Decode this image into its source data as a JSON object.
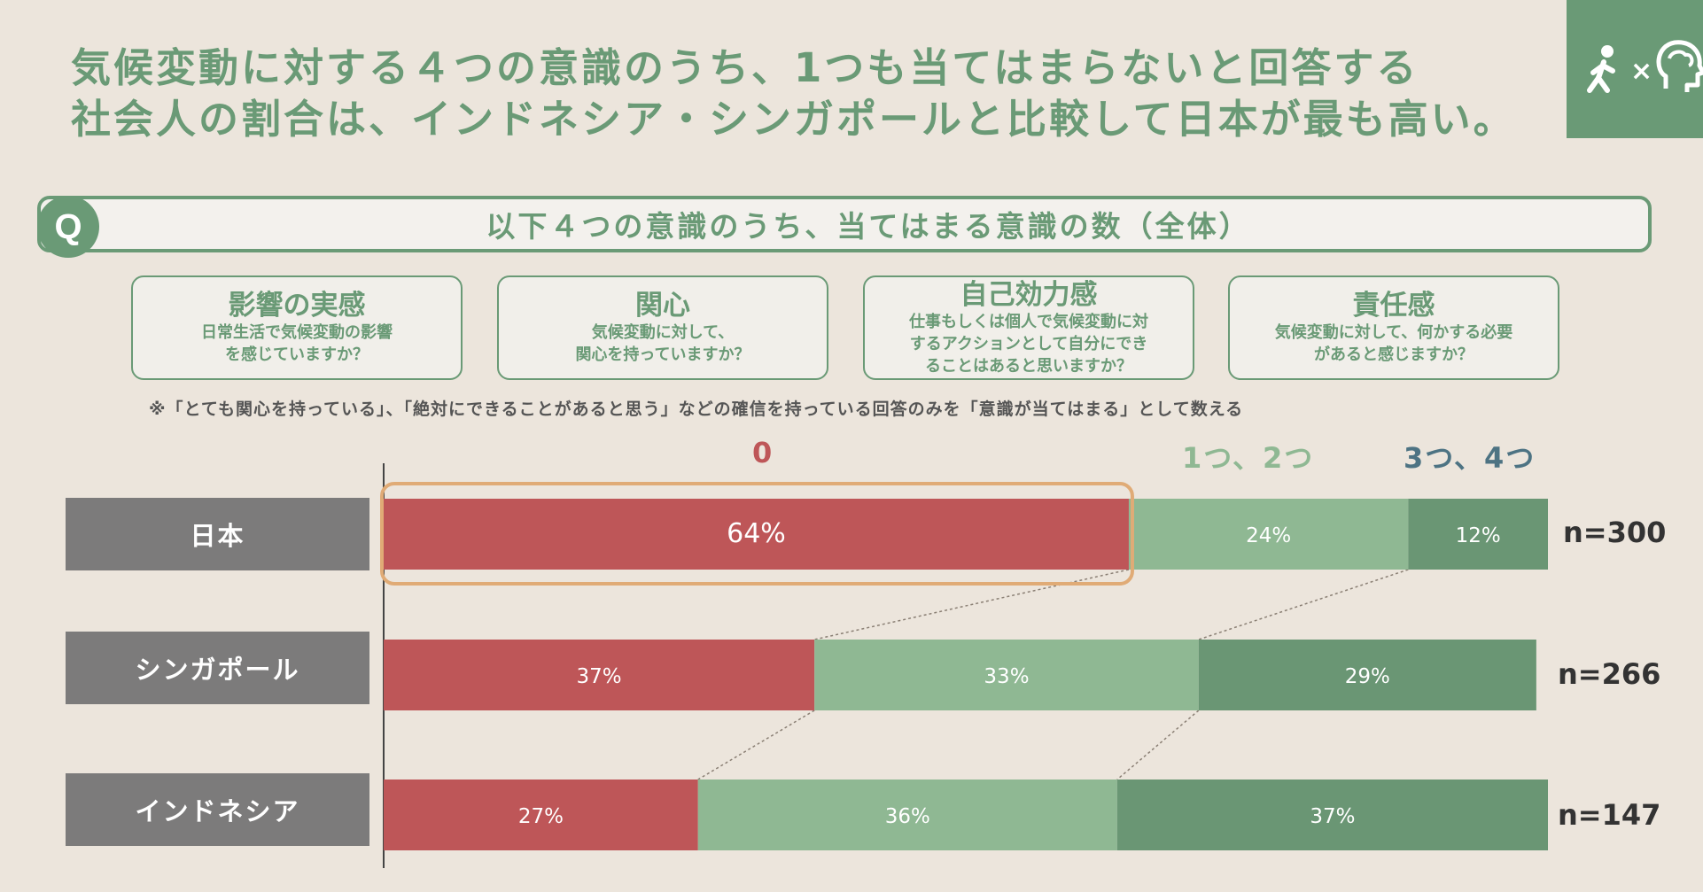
{
  "headline": {
    "line1": "気候変動に対する４つの意識のうち、1つも当てはまらないと回答する",
    "line2": "社会人の割合は、インドネシア・シンガポールと比較して日本が最も高い。"
  },
  "icons": {
    "walker": "walking-person-icon",
    "times": "×",
    "brain": "brain-head-icon"
  },
  "question": {
    "badge": "Q",
    "text": "以下４つの意識のうち、当てはまる意識の数（全体）"
  },
  "cards": [
    {
      "title": "影響の実感",
      "desc": "日常生活で気候変動の影響\nを感じていますか？"
    },
    {
      "title": "関心",
      "desc": "気候変動に対して、\n関心を持っていますか？"
    },
    {
      "title": "自己効力感",
      "desc": "仕事もしくは個人で気候変動に対\nするアクションとして自分にでき\nることはあると思いますか？"
    },
    {
      "title": "責任感",
      "desc": "気候変動に対して、何かする必要\nがあると感じますか？"
    }
  ],
  "note": "※「とても関心を持っている」、「絶対にできることがあると思う」などの確信を持っている回答のみを「意識が当てはまる」として数える",
  "colors": {
    "zero": "#be5658",
    "one_two": "#8fb893",
    "three_four": "#6a9674",
    "highlight": "#e0ab76",
    "accent": "#6a9a76",
    "legend_dark": "#4d7383"
  },
  "chart_data": {
    "type": "bar",
    "orientation": "horizontal-stacked-100",
    "categories": [
      "日本",
      "シンガポール",
      "インドネシア"
    ],
    "series": [
      {
        "name": "0",
        "values": [
          64,
          37,
          27
        ],
        "labels": [
          "64%",
          "37%",
          "27%"
        ]
      },
      {
        "name": "1つ、2つ",
        "values": [
          24,
          33,
          36
        ],
        "labels": [
          "24%",
          "33%",
          "36%"
        ]
      },
      {
        "name": "3つ、4つ",
        "values": [
          12,
          29,
          37
        ],
        "labels": [
          "12%",
          "29%",
          "37%"
        ]
      }
    ],
    "n": [
      "n=300",
      "n=266",
      "n=147"
    ],
    "highlight": {
      "category": "日本",
      "series": "0"
    },
    "xlim": [
      0,
      100
    ]
  }
}
